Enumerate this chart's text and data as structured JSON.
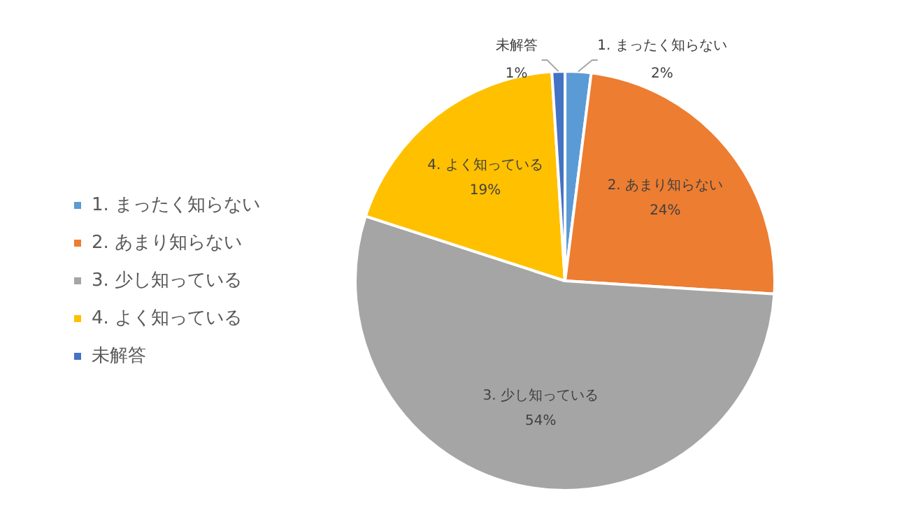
{
  "chart_data": {
    "type": "pie",
    "categories": [
      "1. まったく知らない",
      "2. あまり知らない",
      "3. 少し知っている",
      "4. よく知っている",
      "未解答"
    ],
    "values": [
      2,
      24,
      54,
      19,
      1
    ],
    "value_labels": [
      "2%",
      "24%",
      "54%",
      "19%",
      "1%"
    ],
    "colors": [
      "#5b9bd5",
      "#ed7d31",
      "#a5a5a5",
      "#ffc000",
      "#4472c4"
    ],
    "legend": "left"
  }
}
